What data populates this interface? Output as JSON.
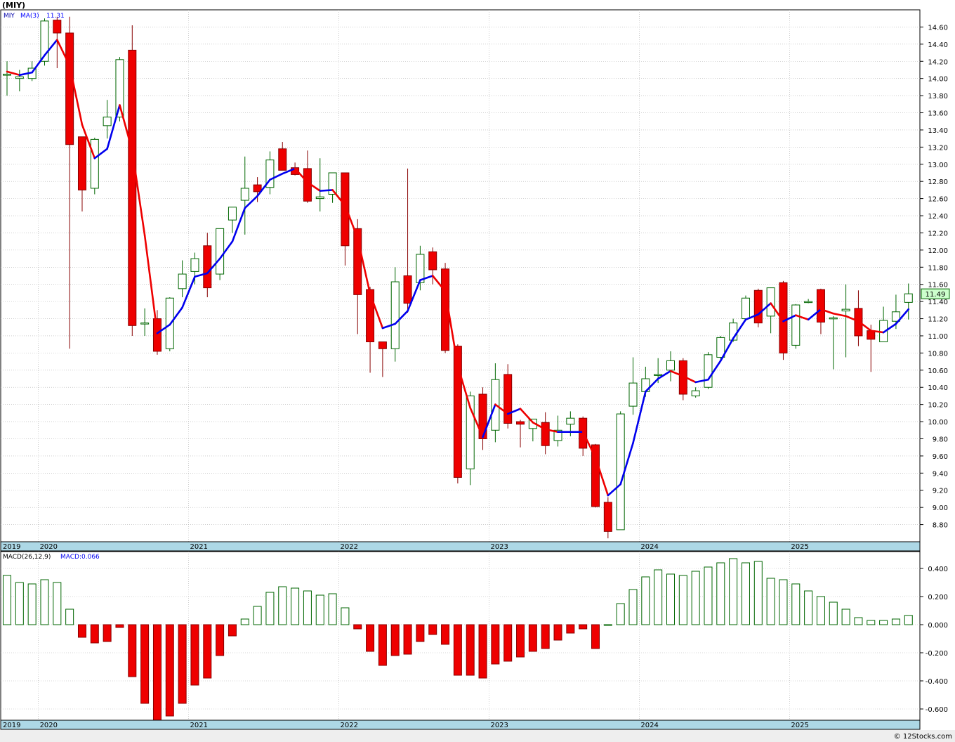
{
  "chart_data": [
    {
      "type": "candlestick",
      "title": "(MIY)",
      "legend": [
        {
          "name": "MIY",
          "color": "#0000aa"
        },
        {
          "name": "MA(3)",
          "color": "#0000ff"
        },
        {
          "name": "11.31",
          "color": "#0000ff"
        }
      ],
      "last_price_label": "11.49",
      "ylim": [
        8.6,
        14.8
      ],
      "y_ticks": [
        8.8,
        9.0,
        9.2,
        9.4,
        9.6,
        9.8,
        10.0,
        10.2,
        10.4,
        10.6,
        10.8,
        11.0,
        11.2,
        11.4,
        11.6,
        11.8,
        12.0,
        12.2,
        12.4,
        12.6,
        12.8,
        13.0,
        13.2,
        13.4,
        13.6,
        13.8,
        14.0,
        14.2,
        14.4,
        14.6
      ],
      "x_labels": [
        {
          "label": "2019",
          "index": -0.5
        },
        {
          "label": "2020",
          "index": 3
        },
        {
          "label": "2021",
          "index": 15
        },
        {
          "label": "2022",
          "index": 27
        },
        {
          "label": "2023",
          "index": 39
        },
        {
          "label": "2024",
          "index": 51
        },
        {
          "label": "2025",
          "index": 63
        }
      ],
      "candles": [
        {
          "o": 14.05,
          "h": 14.2,
          "l": 13.8,
          "c": 14.05
        },
        {
          "o": 14.0,
          "h": 14.1,
          "l": 13.85,
          "c": 14.02
        },
        {
          "o": 14.0,
          "h": 14.2,
          "l": 13.97,
          "c": 14.12
        },
        {
          "o": 14.2,
          "h": 14.7,
          "l": 14.15,
          "c": 14.67
        },
        {
          "o": 14.68,
          "h": 14.72,
          "l": 14.12,
          "c": 14.53
        },
        {
          "o": 14.53,
          "h": 14.72,
          "l": 10.85,
          "c": 13.23
        },
        {
          "o": 13.32,
          "h": 13.32,
          "l": 12.45,
          "c": 12.7
        },
        {
          "o": 12.72,
          "h": 13.31,
          "l": 12.65,
          "c": 13.29
        },
        {
          "o": 13.45,
          "h": 13.75,
          "l": 13.3,
          "c": 13.55
        },
        {
          "o": 13.55,
          "h": 14.25,
          "l": 13.5,
          "c": 14.22
        },
        {
          "o": 14.33,
          "h": 14.62,
          "l": 11.0,
          "c": 11.12
        },
        {
          "o": 11.15,
          "h": 11.32,
          "l": 11.0,
          "c": 11.15
        },
        {
          "o": 11.2,
          "h": 11.3,
          "l": 10.78,
          "c": 10.82
        },
        {
          "o": 10.85,
          "h": 11.45,
          "l": 10.82,
          "c": 11.44
        },
        {
          "o": 11.55,
          "h": 11.88,
          "l": 11.45,
          "c": 11.72
        },
        {
          "o": 11.75,
          "h": 11.97,
          "l": 11.6,
          "c": 11.9
        },
        {
          "o": 12.05,
          "h": 12.2,
          "l": 11.45,
          "c": 11.56
        },
        {
          "o": 11.72,
          "h": 12.25,
          "l": 11.65,
          "c": 12.25
        },
        {
          "o": 12.35,
          "h": 12.5,
          "l": 12.2,
          "c": 12.5
        },
        {
          "o": 12.58,
          "h": 13.09,
          "l": 12.18,
          "c": 12.72
        },
        {
          "o": 12.76,
          "h": 12.85,
          "l": 12.56,
          "c": 12.68
        },
        {
          "o": 12.73,
          "h": 13.15,
          "l": 12.65,
          "c": 13.05
        },
        {
          "o": 13.18,
          "h": 13.26,
          "l": 12.93,
          "c": 12.93
        },
        {
          "o": 12.96,
          "h": 13.02,
          "l": 12.87,
          "c": 12.88
        },
        {
          "o": 12.95,
          "h": 13.16,
          "l": 12.55,
          "c": 12.57
        },
        {
          "o": 12.6,
          "h": 13.07,
          "l": 12.45,
          "c": 12.62
        },
        {
          "o": 12.65,
          "h": 12.9,
          "l": 12.55,
          "c": 12.9
        },
        {
          "o": 12.9,
          "h": 12.9,
          "l": 11.82,
          "c": 12.05
        },
        {
          "o": 12.25,
          "h": 12.36,
          "l": 11.02,
          "c": 11.48
        },
        {
          "o": 11.54,
          "h": 11.57,
          "l": 10.57,
          "c": 10.93
        },
        {
          "o": 10.93,
          "h": 10.93,
          "l": 10.52,
          "c": 10.85
        },
        {
          "o": 10.85,
          "h": 11.8,
          "l": 10.7,
          "c": 11.63
        },
        {
          "o": 11.7,
          "h": 12.95,
          "l": 11.27,
          "c": 11.38
        },
        {
          "o": 11.62,
          "h": 12.05,
          "l": 11.53,
          "c": 11.95
        },
        {
          "o": 11.98,
          "h": 12.03,
          "l": 11.6,
          "c": 11.77
        },
        {
          "o": 11.78,
          "h": 11.85,
          "l": 10.8,
          "c": 10.83
        },
        {
          "o": 10.88,
          "h": 10.9,
          "l": 9.28,
          "c": 9.35
        },
        {
          "o": 9.45,
          "h": 10.35,
          "l": 9.26,
          "c": 10.3
        },
        {
          "o": 10.32,
          "h": 10.4,
          "l": 9.67,
          "c": 9.8
        },
        {
          "o": 9.9,
          "h": 10.68,
          "l": 9.76,
          "c": 10.49
        },
        {
          "o": 10.55,
          "h": 10.67,
          "l": 9.92,
          "c": 9.98
        },
        {
          "o": 10.0,
          "h": 10.02,
          "l": 9.7,
          "c": 9.97
        },
        {
          "o": 9.92,
          "h": 10.0,
          "l": 9.77,
          "c": 10.03
        },
        {
          "o": 9.99,
          "h": 10.11,
          "l": 9.62,
          "c": 9.72
        },
        {
          "o": 9.78,
          "h": 10.07,
          "l": 9.71,
          "c": 9.9
        },
        {
          "o": 9.97,
          "h": 10.12,
          "l": 9.83,
          "c": 10.04
        },
        {
          "o": 10.04,
          "h": 10.06,
          "l": 9.6,
          "c": 9.69
        },
        {
          "o": 9.73,
          "h": 9.74,
          "l": 9.0,
          "c": 9.01
        },
        {
          "o": 9.06,
          "h": 9.12,
          "l": 8.64,
          "c": 8.72
        },
        {
          "o": 8.74,
          "h": 10.12,
          "l": 8.74,
          "c": 10.09
        },
        {
          "o": 10.18,
          "h": 10.75,
          "l": 10.08,
          "c": 10.45
        },
        {
          "o": 10.35,
          "h": 10.64,
          "l": 10.29,
          "c": 10.5
        },
        {
          "o": 10.54,
          "h": 10.74,
          "l": 10.45,
          "c": 10.55
        },
        {
          "o": 10.6,
          "h": 10.82,
          "l": 10.47,
          "c": 10.71
        },
        {
          "o": 10.71,
          "h": 10.74,
          "l": 10.25,
          "c": 10.32
        },
        {
          "o": 10.3,
          "h": 10.4,
          "l": 10.28,
          "c": 10.36
        },
        {
          "o": 10.4,
          "h": 10.81,
          "l": 10.38,
          "c": 10.78
        },
        {
          "o": 10.75,
          "h": 11.0,
          "l": 10.7,
          "c": 10.98
        },
        {
          "o": 10.95,
          "h": 11.2,
          "l": 10.93,
          "c": 11.15
        },
        {
          "o": 11.2,
          "h": 11.47,
          "l": 11.18,
          "c": 11.44
        },
        {
          "o": 11.53,
          "h": 11.55,
          "l": 11.1,
          "c": 11.15
        },
        {
          "o": 11.23,
          "h": 11.56,
          "l": 11.03,
          "c": 11.56
        },
        {
          "o": 11.62,
          "h": 11.64,
          "l": 10.72,
          "c": 10.8
        },
        {
          "o": 10.89,
          "h": 11.37,
          "l": 10.85,
          "c": 11.36
        },
        {
          "o": 11.4,
          "h": 11.43,
          "l": 11.38,
          "c": 11.4
        },
        {
          "o": 11.54,
          "h": 11.55,
          "l": 11.02,
          "c": 11.16
        },
        {
          "o": 11.2,
          "h": 11.23,
          "l": 10.61,
          "c": 11.21
        },
        {
          "o": 11.29,
          "h": 11.6,
          "l": 10.75,
          "c": 11.31
        },
        {
          "o": 11.32,
          "h": 11.53,
          "l": 10.88,
          "c": 11.0
        },
        {
          "o": 11.06,
          "h": 11.13,
          "l": 10.58,
          "c": 10.96
        },
        {
          "o": 10.93,
          "h": 11.34,
          "l": 10.93,
          "c": 11.18
        },
        {
          "o": 11.17,
          "h": 11.48,
          "l": 11.08,
          "c": 11.28
        },
        {
          "o": 11.39,
          "h": 11.61,
          "l": 11.19,
          "c": 11.49
        }
      ],
      "ma": [
        14.08,
        14.04,
        14.07,
        14.27,
        14.45,
        14.15,
        13.46,
        13.07,
        13.18,
        13.69,
        13.16,
        12.17,
        11.03,
        11.13,
        11.33,
        11.69,
        11.73,
        11.9,
        12.1,
        12.49,
        12.63,
        12.82,
        12.89,
        12.95,
        12.79,
        12.69,
        12.7,
        12.52,
        12.14,
        11.49,
        11.09,
        11.14,
        11.29,
        11.65,
        11.7,
        11.52,
        10.65,
        10.16,
        9.82,
        10.2,
        10.09,
        10.15,
        9.99,
        9.91,
        9.88,
        9.88,
        9.88,
        9.58,
        9.14,
        9.27,
        9.75,
        10.35,
        10.5,
        10.59,
        10.53,
        10.46,
        10.49,
        10.71,
        10.97,
        11.19,
        11.25,
        11.38,
        11.17,
        11.24,
        11.19,
        11.31,
        11.26,
        11.23,
        11.17,
        11.06,
        11.04,
        11.14,
        11.31
      ],
      "ma_colors": {
        "up": "#0000ee",
        "down": "#ee0000"
      },
      "colors": {
        "up_body": "#ffffff",
        "up_line": "#006600",
        "down_body": "#ee0000",
        "down_line": "#880000",
        "last_price_bg": "#ccffcc"
      }
    },
    {
      "type": "bar",
      "title": "MACD(26,12,9)",
      "legend": [
        {
          "name": "MACD:0.066",
          "color": "#0000ee"
        }
      ],
      "ylim": [
        -0.68,
        0.52
      ],
      "y_ticks": [
        -0.6,
        -0.4,
        -0.2,
        0.0,
        0.2,
        0.4
      ],
      "y_tick_labels": [
        "-0.600",
        "-0.400",
        "-0.200",
        "0.000",
        "0.200",
        "0.400"
      ],
      "x_labels": [
        {
          "label": "2019",
          "index": -0.5
        },
        {
          "label": "2020",
          "index": 3
        },
        {
          "label": "2021",
          "index": 15
        },
        {
          "label": "2022",
          "index": 27
        },
        {
          "label": "2023",
          "index": 39
        },
        {
          "label": "2024",
          "index": 51
        },
        {
          "label": "2025",
          "index": 63
        }
      ],
      "values": [
        0.35,
        0.3,
        0.29,
        0.32,
        0.3,
        0.11,
        -0.09,
        -0.13,
        -0.12,
        -0.02,
        -0.37,
        -0.56,
        -0.68,
        -0.65,
        -0.56,
        -0.43,
        -0.38,
        -0.22,
        -0.08,
        0.04,
        0.13,
        0.23,
        0.27,
        0.26,
        0.24,
        0.21,
        0.22,
        0.12,
        -0.03,
        -0.19,
        -0.29,
        -0.22,
        -0.21,
        -0.12,
        -0.07,
        -0.14,
        -0.36,
        -0.36,
        -0.38,
        -0.28,
        -0.26,
        -0.23,
        -0.19,
        -0.17,
        -0.11,
        -0.06,
        -0.03,
        -0.17,
        0.0,
        0.15,
        0.25,
        0.34,
        0.39,
        0.36,
        0.35,
        0.38,
        0.41,
        0.44,
        0.47,
        0.44,
        0.45,
        0.33,
        0.32,
        0.29,
        0.24,
        0.2,
        0.16,
        0.11,
        0.05,
        0.03,
        0.03,
        0.04,
        0.066
      ],
      "colors": {
        "positive_line": "#006600",
        "negative_fill": "#ee0000",
        "negative_line": "#880000"
      }
    }
  ],
  "footer": {
    "copyright": "© 12Stocks.com"
  },
  "colors": {
    "grid": "#aaaaaa",
    "axis_band": "#add8e6",
    "border": "#000000",
    "page_bg": "#eeeeee"
  }
}
